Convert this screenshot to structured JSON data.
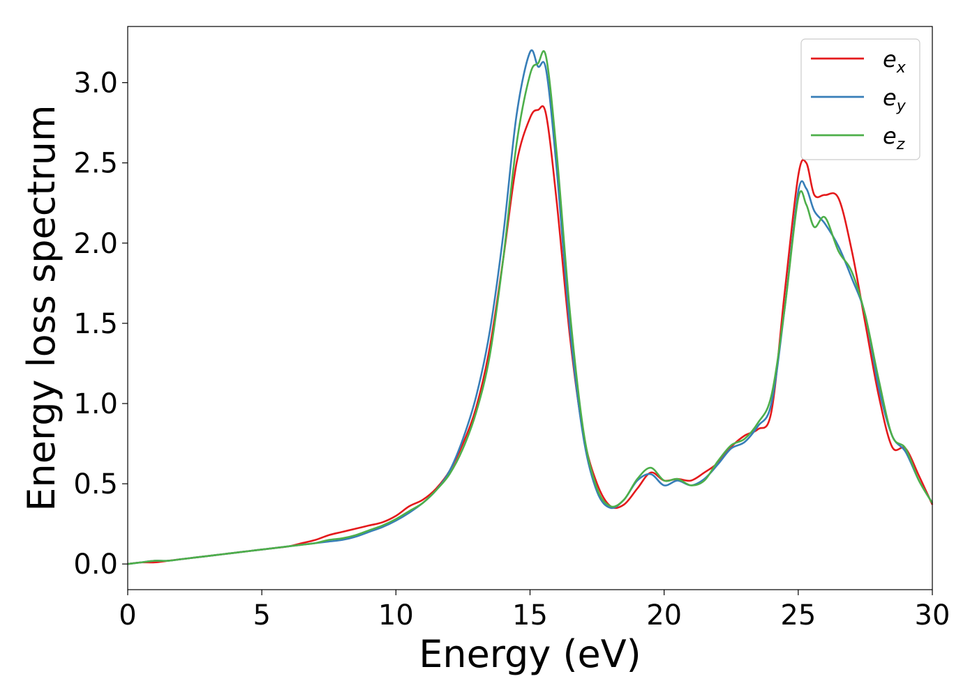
{
  "chart_data": {
    "type": "line",
    "title": "",
    "xlabel": "Energy (eV)",
    "ylabel": "Energy loss spectrum",
    "xlim": [
      0,
      30
    ],
    "ylim": [
      -0.16,
      3.35
    ],
    "xticks": [
      "0",
      "5",
      "10",
      "15",
      "20",
      "25",
      "30"
    ],
    "yticks": [
      "0.0",
      "0.5",
      "1.0",
      "1.5",
      "2.0",
      "2.5",
      "3.0"
    ],
    "grid": false,
    "legend_position": "top-right",
    "series": [
      {
        "name": "e",
        "subscript": "x",
        "color": "#e41a1c",
        "x": [
          0,
          0.5,
          1,
          1.5,
          2,
          2.5,
          3,
          3.5,
          4,
          4.5,
          5,
          5.5,
          6,
          6.5,
          7,
          7.5,
          8,
          8.5,
          9,
          9.5,
          10,
          10.5,
          11,
          11.5,
          12,
          12.5,
          13,
          13.5,
          14,
          14.5,
          15,
          15.3,
          15.6,
          16,
          16.5,
          17,
          17.5,
          18,
          18.5,
          19,
          19.5,
          20,
          20.5,
          21,
          21.5,
          22,
          22.5,
          23,
          23.5,
          24,
          24.5,
          25,
          25.3,
          25.6,
          26,
          26.5,
          27,
          27.5,
          28,
          28.5,
          29,
          29.5,
          30
        ],
        "y": [
          0.0,
          0.01,
          0.01,
          0.02,
          0.03,
          0.04,
          0.05,
          0.06,
          0.07,
          0.08,
          0.09,
          0.1,
          0.11,
          0.13,
          0.15,
          0.18,
          0.2,
          0.22,
          0.24,
          0.26,
          0.3,
          0.36,
          0.4,
          0.47,
          0.58,
          0.75,
          0.98,
          1.35,
          1.9,
          2.5,
          2.78,
          2.83,
          2.8,
          2.25,
          1.4,
          0.8,
          0.5,
          0.36,
          0.37,
          0.47,
          0.57,
          0.52,
          0.53,
          0.52,
          0.57,
          0.63,
          0.73,
          0.8,
          0.84,
          0.95,
          1.7,
          2.42,
          2.5,
          2.3,
          2.3,
          2.28,
          1.95,
          1.5,
          1.05,
          0.73,
          0.72,
          0.55,
          0.37
        ]
      },
      {
        "name": "e",
        "subscript": "y",
        "color": "#377eb8",
        "x": [
          0,
          0.5,
          1,
          1.5,
          2,
          2.5,
          3,
          3.5,
          4,
          4.5,
          5,
          5.5,
          6,
          6.5,
          7,
          7.5,
          8,
          8.5,
          9,
          9.5,
          10,
          10.5,
          11,
          11.5,
          12,
          12.5,
          13,
          13.5,
          14,
          14.5,
          15,
          15.3,
          15.6,
          16,
          16.5,
          17,
          17.5,
          18,
          18.5,
          19,
          19.5,
          20,
          20.5,
          21,
          21.5,
          22,
          22.5,
          23,
          23.5,
          24,
          24.5,
          25,
          25.3,
          25.6,
          26,
          26.5,
          27,
          27.5,
          28,
          28.5,
          29,
          29.5,
          30
        ],
        "y": [
          0.0,
          0.01,
          0.02,
          0.02,
          0.03,
          0.04,
          0.05,
          0.06,
          0.07,
          0.08,
          0.09,
          0.1,
          0.11,
          0.12,
          0.13,
          0.14,
          0.15,
          0.17,
          0.2,
          0.23,
          0.27,
          0.32,
          0.38,
          0.46,
          0.58,
          0.78,
          1.05,
          1.45,
          2.05,
          2.8,
          3.19,
          3.1,
          3.08,
          2.45,
          1.45,
          0.78,
          0.45,
          0.35,
          0.4,
          0.52,
          0.56,
          0.49,
          0.52,
          0.49,
          0.53,
          0.62,
          0.72,
          0.76,
          0.86,
          1.0,
          1.6,
          2.32,
          2.34,
          2.2,
          2.12,
          1.98,
          1.78,
          1.55,
          1.1,
          0.8,
          0.7,
          0.52,
          0.38
        ]
      },
      {
        "name": "e",
        "subscript": "z",
        "color": "#4daf4a",
        "x": [
          0,
          0.5,
          1,
          1.5,
          2,
          2.5,
          3,
          3.5,
          4,
          4.5,
          5,
          5.5,
          6,
          6.5,
          7,
          7.5,
          8,
          8.5,
          9,
          9.5,
          10,
          10.5,
          11,
          11.5,
          12,
          12.5,
          13,
          13.5,
          14,
          14.5,
          15,
          15.3,
          15.6,
          16,
          16.5,
          17,
          17.5,
          18,
          18.5,
          19,
          19.5,
          20,
          20.5,
          21,
          21.5,
          22,
          22.5,
          23,
          23.5,
          24,
          24.5,
          25,
          25.3,
          25.6,
          26,
          26.5,
          27,
          27.5,
          28,
          28.5,
          29,
          29.5,
          30
        ],
        "y": [
          0.0,
          0.01,
          0.02,
          0.02,
          0.03,
          0.04,
          0.05,
          0.06,
          0.07,
          0.08,
          0.09,
          0.1,
          0.11,
          0.12,
          0.13,
          0.15,
          0.16,
          0.18,
          0.21,
          0.24,
          0.28,
          0.33,
          0.38,
          0.46,
          0.56,
          0.72,
          0.95,
          1.3,
          1.9,
          2.62,
          3.05,
          3.12,
          3.16,
          2.55,
          1.55,
          0.82,
          0.47,
          0.36,
          0.4,
          0.53,
          0.6,
          0.52,
          0.53,
          0.49,
          0.52,
          0.64,
          0.74,
          0.78,
          0.88,
          1.05,
          1.6,
          2.28,
          2.24,
          2.1,
          2.16,
          1.95,
          1.82,
          1.55,
          1.15,
          0.8,
          0.72,
          0.52,
          0.38
        ]
      }
    ]
  }
}
